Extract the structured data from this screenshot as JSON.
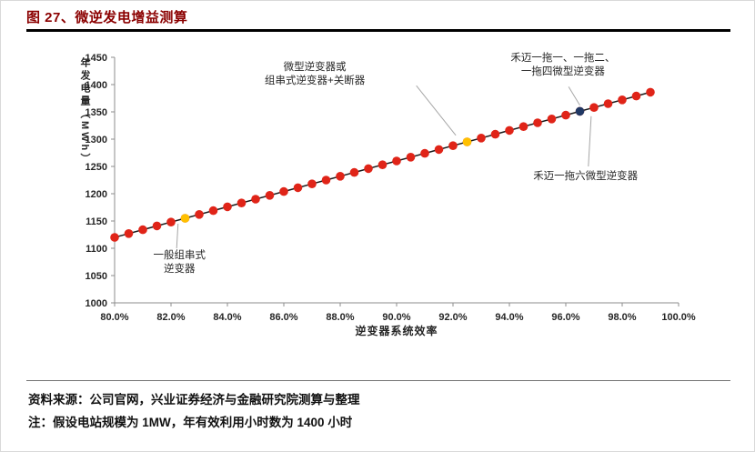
{
  "figure": {
    "title": "图 27、微逆发电增益测算"
  },
  "chart_data": {
    "type": "scatter",
    "title": "微逆发电增益测算",
    "xlabel": "逆变器系统效率",
    "ylabel": "年发电量（MWh）",
    "xlim": [
      80,
      100
    ],
    "ylim": [
      1000,
      1450
    ],
    "x_tick_values": [
      80,
      82,
      84,
      86,
      88,
      90,
      92,
      94,
      96,
      98,
      100
    ],
    "x_ticks": [
      "80.0%",
      "82.0%",
      "84.0%",
      "86.0%",
      "88.0%",
      "90.0%",
      "92.0%",
      "94.0%",
      "96.0%",
      "98.0%",
      "100.0%"
    ],
    "y_ticks": [
      1000,
      1050,
      1100,
      1150,
      1200,
      1250,
      1300,
      1350,
      1400,
      1450
    ],
    "x": [
      80,
      80.5,
      81,
      81.5,
      82,
      82.5,
      83,
      83.5,
      84,
      84.5,
      85,
      85.5,
      86,
      86.5,
      87,
      87.5,
      88,
      88.5,
      89,
      89.5,
      90,
      90.5,
      91,
      91.5,
      92,
      92.5,
      93,
      93.5,
      94,
      94.5,
      95,
      95.5,
      96,
      96.5,
      97,
      97.5,
      98,
      98.5,
      99
    ],
    "y": [
      1120,
      1127,
      1134,
      1141,
      1148,
      1155,
      1162,
      1169,
      1176,
      1183,
      1190,
      1197,
      1204,
      1211,
      1218,
      1225,
      1232,
      1239,
      1246,
      1253,
      1260,
      1267,
      1274,
      1281,
      1288,
      1295,
      1302,
      1309,
      1316,
      1323,
      1330,
      1337,
      1344,
      1351,
      1358,
      1365,
      1372,
      1379,
      1386
    ],
    "special_points": [
      {
        "x": 82.5,
        "y": 1155,
        "color": "#FFC000",
        "label": "一般组串式逆变器"
      },
      {
        "x": 92.5,
        "y": 1295,
        "color": "#FFC000",
        "label": "微型逆变器或组串式逆变器+关断器"
      },
      {
        "x": 96.5,
        "y": 1351,
        "color": "#203864",
        "label": "禾迈一拖一、一拖二、一拖四微型逆变器"
      }
    ],
    "annotations": [
      {
        "lines": [
          "微型逆变器或",
          "组串式逆变器+关断器"
        ],
        "tx": 87.1,
        "ty": 1427,
        "leader": [
          90.7,
          1398,
          92.1,
          1307
        ]
      },
      {
        "lines": [
          "禾迈一拖一、一拖二、",
          "一拖四微型逆变器"
        ],
        "tx": 95.9,
        "ty": 1443,
        "leader": [
          96.1,
          1396,
          96.5,
          1362
        ]
      },
      {
        "lines": [
          "禾迈一拖六微型逆变器"
        ],
        "tx": 96.7,
        "ty": 1227,
        "leader": [
          96.8,
          1250,
          96.9,
          1342
        ]
      },
      {
        "lines": [
          "一般组串式",
          "逆变器"
        ],
        "tx": 82.3,
        "ty": 1082,
        "leader": [
          82.2,
          1100,
          82.25,
          1145
        ]
      }
    ],
    "colors": {
      "point": "#E02418",
      "line": "#1A1A1A",
      "axis": "#8C8C8C",
      "leader": "#A6A6A6",
      "highlight_yellow": "#FFC000",
      "highlight_navy": "#203864",
      "title": "#8B0000"
    },
    "assumptions": {
      "plant_size": "1MW",
      "annual_hours": "1400"
    }
  },
  "footer": {
    "source": "资料来源：公司官网，兴业证券经济与金融研究院测算与整理",
    "note": "注：假设电站规模为 1MW，年有效利用小时数为 1400 小时"
  }
}
